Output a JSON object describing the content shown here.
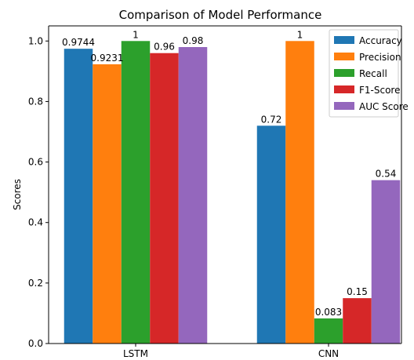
{
  "chart_data": {
    "type": "bar",
    "title": "Comparison of Model Performance",
    "xlabel": "",
    "ylabel": "Scores",
    "categories": [
      "LSTM",
      "CNN"
    ],
    "ylim": [
      0,
      1.05
    ],
    "yticks": [
      "0.0",
      "0.2",
      "0.4",
      "0.6",
      "0.8",
      "1.0"
    ],
    "grid": false,
    "legend_position": "top-right",
    "series": [
      {
        "name": "Accuracy",
        "color": "#1f77b4",
        "values": [
          0.9744,
          0.72
        ],
        "labels": [
          "0.9744",
          "0.72"
        ]
      },
      {
        "name": "Precision",
        "color": "#ff7f0e",
        "values": [
          0.9231,
          1.0
        ],
        "labels": [
          "0.9231",
          "1"
        ]
      },
      {
        "name": "Recall",
        "color": "#2ca02c",
        "values": [
          1.0,
          0.083
        ],
        "labels": [
          "1",
          "0.083"
        ]
      },
      {
        "name": "F1-Score",
        "color": "#d62728",
        "values": [
          0.96,
          0.15
        ],
        "labels": [
          "0.96",
          "0.15"
        ]
      },
      {
        "name": "AUC Score",
        "color": "#9467bd",
        "values": [
          0.98,
          0.54
        ],
        "labels": [
          "0.98",
          "0.54"
        ]
      }
    ]
  }
}
